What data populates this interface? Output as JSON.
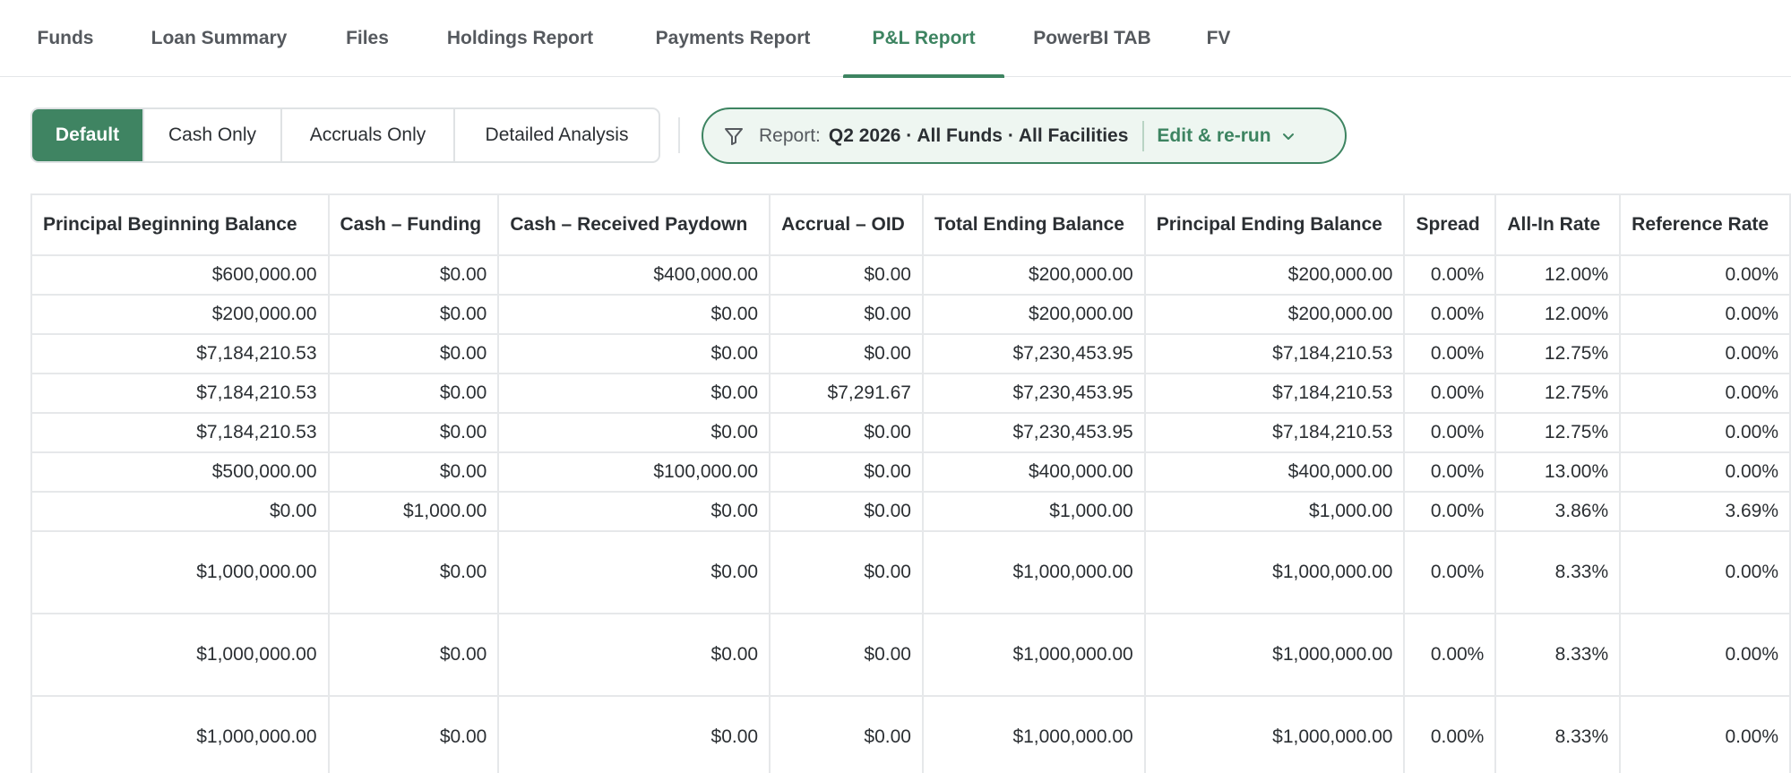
{
  "tabs": [
    {
      "label": "Funds"
    },
    {
      "label": "Loan Summary"
    },
    {
      "label": "Files"
    },
    {
      "label": "Holdings Report"
    },
    {
      "label": "Payments Report"
    },
    {
      "label": "P&L Report",
      "active": true
    },
    {
      "label": "PowerBI TAB"
    },
    {
      "label": "FV"
    }
  ],
  "views": [
    "Default",
    "Cash Only",
    "Accruals Only",
    "Detailed Analysis"
  ],
  "active_view": "Default",
  "report": {
    "label": "Report:",
    "value": "Q2 2026 · All Funds · All Facilities",
    "edit_label": "Edit & re-run",
    "icon": "filter-icon"
  },
  "table": {
    "columns": [
      "Principal Beginning Balance",
      "Cash – Funding",
      "Cash – Received Paydown",
      "Accrual – OID",
      "Total Ending Balance",
      "Principal Ending Balance",
      "Spread",
      "All-In Rate",
      "Reference Rate"
    ],
    "rows": [
      [
        "$600,000.00",
        "$0.00",
        "$400,000.00",
        "$0.00",
        "$200,000.00",
        "$200,000.00",
        "0.00%",
        "12.00%",
        "0.00%"
      ],
      [
        "$200,000.00",
        "$0.00",
        "$0.00",
        "$0.00",
        "$200,000.00",
        "$200,000.00",
        "0.00%",
        "12.00%",
        "0.00%"
      ],
      [
        "$7,184,210.53",
        "$0.00",
        "$0.00",
        "$0.00",
        "$7,230,453.95",
        "$7,184,210.53",
        "0.00%",
        "12.75%",
        "0.00%"
      ],
      [
        "$7,184,210.53",
        "$0.00",
        "$0.00",
        "$7,291.67",
        "$7,230,453.95",
        "$7,184,210.53",
        "0.00%",
        "12.75%",
        "0.00%"
      ],
      [
        "$7,184,210.53",
        "$0.00",
        "$0.00",
        "$0.00",
        "$7,230,453.95",
        "$7,184,210.53",
        "0.00%",
        "12.75%",
        "0.00%"
      ],
      [
        "$500,000.00",
        "$0.00",
        "$100,000.00",
        "$0.00",
        "$400,000.00",
        "$400,000.00",
        "0.00%",
        "13.00%",
        "0.00%"
      ],
      [
        "$0.00",
        "$1,000.00",
        "$0.00",
        "$0.00",
        "$1,000.00",
        "$1,000.00",
        "0.00%",
        "3.86%",
        "3.69%"
      ],
      [
        "$1,000,000.00",
        "$0.00",
        "$0.00",
        "$0.00",
        "$1,000,000.00",
        "$1,000,000.00",
        "0.00%",
        "8.33%",
        "0.00%"
      ],
      [
        "$1,000,000.00",
        "$0.00",
        "$0.00",
        "$0.00",
        "$1,000,000.00",
        "$1,000,000.00",
        "0.00%",
        "8.33%",
        "0.00%"
      ],
      [
        "$1,000,000.00",
        "$0.00",
        "$0.00",
        "$0.00",
        "$1,000,000.00",
        "$1,000,000.00",
        "0.00%",
        "8.33%",
        "0.00%"
      ]
    ]
  },
  "colors": {
    "accent": "#3d8461",
    "accent_fill": "#3f8462",
    "pill_bg": "#eef6f1",
    "border": "#e6e8ea",
    "text": "#2b2f33",
    "muted": "#55595e"
  }
}
